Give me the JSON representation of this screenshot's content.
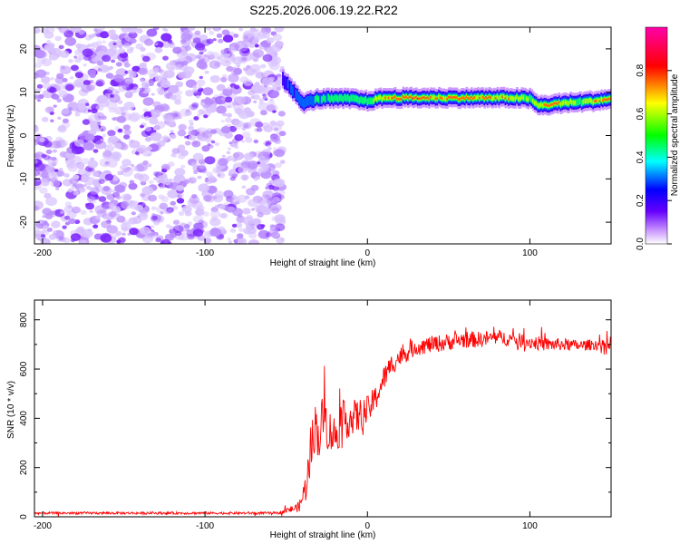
{
  "chart_data": [
    {
      "type": "heatmap",
      "title": "S225.2026.006.19.22.R22",
      "xlabel": "Height of straight line (km)",
      "ylabel": "Frequency (Hz)",
      "xlim": [
        -205,
        150
      ],
      "ylim": [
        -25,
        25
      ],
      "xticks": [
        -200,
        -100,
        0,
        100
      ],
      "yticks": [
        -20,
        -10,
        0,
        10,
        20
      ],
      "colorbar": {
        "label": "Normalized spectral amplitude",
        "range": [
          0,
          1
        ],
        "ticks": [
          0.0,
          0.2,
          0.4,
          0.6,
          0.8
        ],
        "colors": [
          "#ffffff",
          "#cc99ff",
          "#6600ff",
          "#0000ff",
          "#00ffff",
          "#00ff00",
          "#ffff00",
          "#ff0000",
          "#ff00aa"
        ]
      },
      "noise_region_x": [
        -205,
        -52
      ],
      "signal_track": {
        "x": [
          -52,
          -45,
          -40,
          -35,
          -30,
          -20,
          -10,
          0,
          10,
          20,
          30,
          40,
          50,
          60,
          70,
          80,
          90,
          100,
          105,
          110,
          120,
          130,
          140,
          150
        ],
        "freq": [
          13,
          10,
          7.5,
          8,
          8.5,
          8.5,
          8.5,
          8,
          8.7,
          8.7,
          8.7,
          8.7,
          8.7,
          8.7,
          8.7,
          8.7,
          8.7,
          8.5,
          7,
          7,
          7.5,
          7.7,
          8,
          8.5
        ],
        "amplitude": [
          0.3,
          0.35,
          0.4,
          0.45,
          0.5,
          0.55,
          0.55,
          0.55,
          0.8,
          0.9,
          0.95,
          0.85,
          0.85,
          0.85,
          0.85,
          0.8,
          0.75,
          0.65,
          0.7,
          0.95,
          0.8,
          0.6,
          0.8,
          0.85
        ]
      }
    },
    {
      "type": "line",
      "xlabel": "Height of straight line (km)",
      "ylabel": "SNR (10 * v/v)",
      "xlim": [
        -205,
        150
      ],
      "ylim": [
        0,
        880
      ],
      "xticks": [
        -200,
        -100,
        0,
        100
      ],
      "yticks": [
        0,
        200,
        400,
        600,
        800
      ],
      "series": [
        {
          "name": "SNR",
          "color": "#ff0000",
          "x": [
            -205,
            -100,
            -55,
            -42,
            -38,
            -34,
            -32,
            -30,
            -27,
            -24,
            -20,
            -15,
            -10,
            -5,
            0,
            5,
            10,
            15,
            20,
            30,
            40,
            50,
            60,
            70,
            80,
            90,
            100,
            110,
            120,
            130,
            140,
            150
          ],
          "values": [
            15,
            15,
            15,
            40,
            120,
            300,
            380,
            320,
            420,
            350,
            330,
            390,
            400,
            410,
            430,
            480,
            560,
            620,
            650,
            690,
            700,
            710,
            720,
            720,
            730,
            720,
            710,
            700,
            700,
            695,
            700,
            690
          ],
          "noise_amp": [
            10,
            10,
            10,
            40,
            120,
            200,
            180,
            200,
            200,
            180,
            170,
            160,
            150,
            140,
            120,
            110,
            100,
            90,
            80,
            70,
            70,
            70,
            70,
            65,
            60,
            60,
            60,
            55,
            50,
            45,
            45,
            45
          ]
        }
      ]
    }
  ]
}
